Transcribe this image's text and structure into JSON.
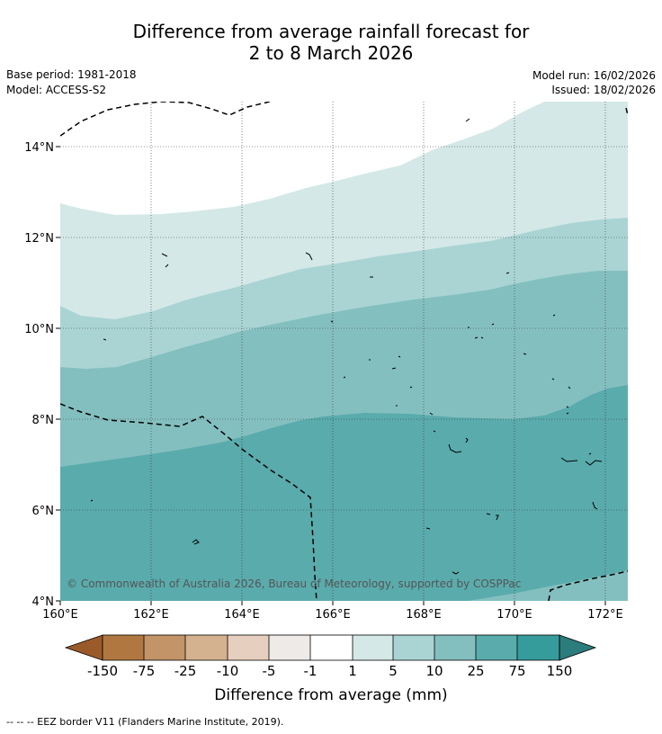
{
  "title": {
    "line1": "Difference from average rainfall forecast for",
    "line2": "2 to 8 March 2026"
  },
  "meta": {
    "base_period": "Base period: 1981-2018",
    "model": "Model: ACCESS-S2",
    "model_run": "Model run: 16/02/2026",
    "issued": "Issued: 18/02/2026"
  },
  "map": {
    "lat_labels": [
      "14°N",
      "12°N",
      "10°N",
      "8°N",
      "6°N",
      "4°N"
    ],
    "lon_labels": [
      "160°E",
      "162°E",
      "164°E",
      "166°E",
      "168°E",
      "170°E",
      "172°E"
    ],
    "copyright": "© Commonwealth of Australia 2026, Bureau of Meteorology, supported by COSPPac"
  },
  "legend": {
    "title": "Difference from average (mm)",
    "ticks": [
      "-150",
      "-75",
      "-25",
      "-10",
      "-5",
      "-1",
      "1",
      "5",
      "10",
      "25",
      "75",
      "150"
    ],
    "colors": {
      "below_150": "#9b5a2a",
      "m150_m75": "#b07840",
      "m75_m25": "#c29468",
      "m25_m10": "#d4b290",
      "m10_m5": "#e6cfbe",
      "m5_m1": "#eeeae7",
      "m1_1": "#ffffff",
      "1_5": "#d4e8e7",
      "5_10": "#aad4d4",
      "10_25": "#84bfbf",
      "25_75": "#5aabac",
      "75_150": "#369b9b",
      "above_150": "#2b7c7c"
    }
  },
  "footer": "--  --  -- EEZ border V11 (Flanders Marine Institute, 2019)."
}
